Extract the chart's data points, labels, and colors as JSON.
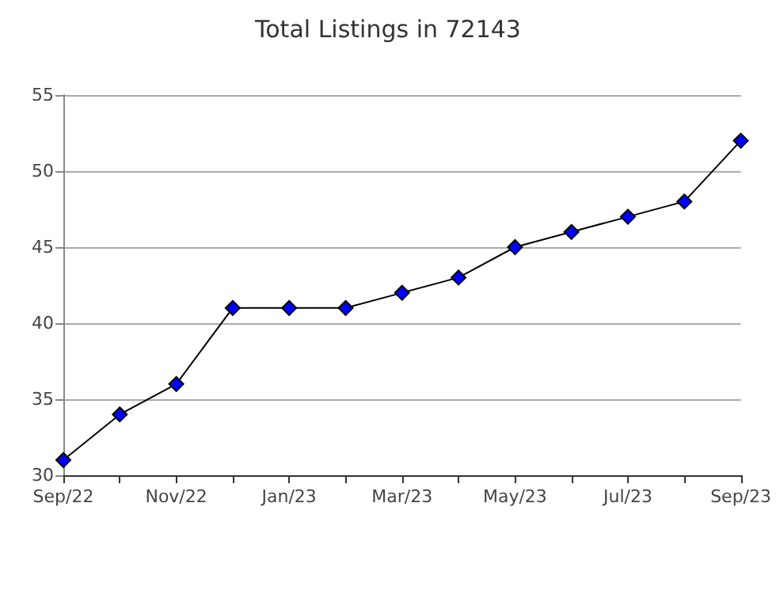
{
  "chart_data": {
    "type": "line",
    "title": "Total Listings in 72143",
    "categories": [
      "Sep/22",
      null,
      "Nov/22",
      null,
      "Jan/23",
      null,
      "Mar/23",
      null,
      "May/23",
      null,
      "Jul/23",
      null,
      "Sep/23"
    ],
    "series": [
      {
        "color": "#0000ff",
        "values": [
          31,
          34,
          36,
          41,
          41,
          41,
          42,
          43,
          45,
          46,
          47,
          48,
          52
        ]
      }
    ],
    "ylim": [
      30,
      55
    ],
    "yticks": [
      30,
      35,
      40,
      45,
      50,
      55
    ],
    "grid": "y",
    "marker": "diamond",
    "line_style": "solid"
  }
}
